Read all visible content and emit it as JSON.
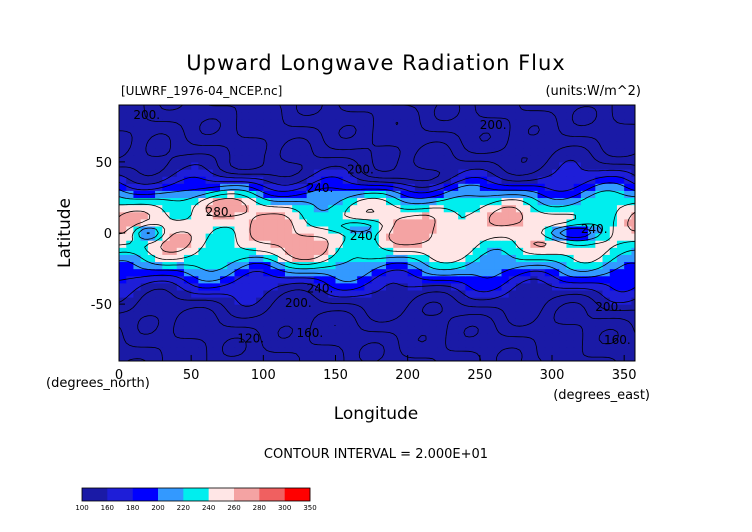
{
  "chart_data": {
    "type": "heatmap",
    "title": "Upward Longwave Radiation Flux",
    "source_label": "[ULWRF_1976-04_NCEP.nc]",
    "units_label": "(units:W/m^2)",
    "xlabel": "Longitude",
    "ylabel": "Latitude",
    "x_unit_label": "(degrees_east)",
    "y_unit_label": "(degrees_north)",
    "xlim": [
      0,
      357.5
    ],
    "ylim": [
      -90,
      90
    ],
    "x_ticks": [
      "0",
      "50",
      "100",
      "150",
      "200",
      "250",
      "300",
      "350"
    ],
    "y_ticks": [
      "50",
      "0",
      "-50"
    ],
    "contour_interval_text": "CONTOUR INTERVAL = 2.000E+01",
    "colorbar": {
      "levels": [
        "100",
        "160",
        "180",
        "200",
        "220",
        "240",
        "260",
        "280",
        "300",
        "350"
      ],
      "colors": [
        "#1a1aa6",
        "#1e1ed8",
        "#0000ff",
        "#3399ff",
        "#00eeee",
        "#ffe6e6",
        "#f4a3a3",
        "#f06060",
        "#ff0000"
      ]
    },
    "contour_labels": [
      {
        "text": "200.",
        "lon": 10,
        "lat": 80
      },
      {
        "text": "200.",
        "lon": 250,
        "lat": 73
      },
      {
        "text": "200.",
        "lon": 158,
        "lat": 42
      },
      {
        "text": "240.",
        "lon": 130,
        "lat": 29
      },
      {
        "text": "280.",
        "lon": 60,
        "lat": 12
      },
      {
        "text": "240.",
        "lon": 160,
        "lat": -5
      },
      {
        "text": "240.",
        "lon": 320,
        "lat": 0
      },
      {
        "text": "240.",
        "lon": 130,
        "lat": -42
      },
      {
        "text": "200.",
        "lon": 115,
        "lat": -52
      },
      {
        "text": "200.",
        "lon": 330,
        "lat": -55
      },
      {
        "text": "160.",
        "lon": 123,
        "lat": -73
      },
      {
        "text": "120.",
        "lon": 82,
        "lat": -77
      },
      {
        "text": "160.",
        "lon": 336,
        "lat": -78
      }
    ]
  }
}
